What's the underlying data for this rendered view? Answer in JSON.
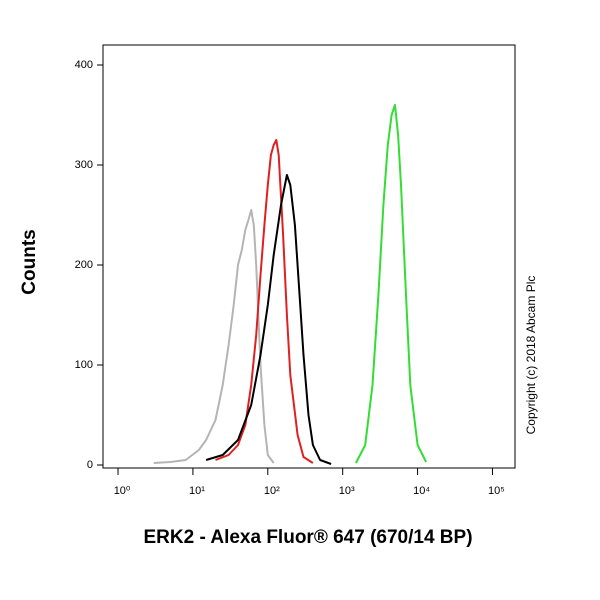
{
  "chart_data": {
    "type": "line",
    "y_label": "Counts",
    "x_label": "ERK2 - Alexa Fluor® 647 (670/14 BP)",
    "annotation": "Copyright (c) 2018 Abcam Plc",
    "log_x": true,
    "xlim": [
      0.63,
      200000
    ],
    "xticks": [
      {
        "value": 1,
        "label": "10⁰"
      },
      {
        "value": 10,
        "label": "10¹"
      },
      {
        "value": 100,
        "label": "10²"
      },
      {
        "value": 1000,
        "label": "10³"
      },
      {
        "value": 10000,
        "label": "10⁴"
      },
      {
        "value": 100000,
        "label": "10⁵"
      }
    ],
    "ylim": [
      0,
      420
    ],
    "yticks": [
      0,
      100,
      200,
      300,
      400
    ],
    "series": [
      {
        "color": "#b4b4b4",
        "x": [
          3,
          5,
          8,
          12,
          15,
          20,
          25,
          30,
          35,
          40,
          45,
          50,
          55,
          60,
          65,
          70,
          80,
          90,
          100,
          120
        ],
        "values": [
          2,
          3,
          5,
          15,
          25,
          45,
          80,
          120,
          160,
          200,
          215,
          235,
          245,
          255,
          240,
          200,
          100,
          40,
          10,
          2
        ]
      },
      {
        "color": "#e02020",
        "x": [
          20,
          30,
          40,
          50,
          60,
          70,
          80,
          90,
          100,
          110,
          120,
          130,
          140,
          160,
          180,
          200,
          250,
          300,
          400
        ],
        "values": [
          5,
          10,
          20,
          40,
          80,
          130,
          190,
          240,
          280,
          310,
          320,
          325,
          310,
          230,
          150,
          90,
          30,
          8,
          2
        ]
      },
      {
        "color": "#000000",
        "x": [
          15,
          25,
          40,
          60,
          80,
          100,
          120,
          150,
          180,
          200,
          230,
          260,
          300,
          350,
          400,
          500,
          700
        ],
        "values": [
          5,
          10,
          25,
          60,
          110,
          160,
          210,
          260,
          290,
          280,
          240,
          180,
          110,
          50,
          20,
          5,
          1
        ]
      },
      {
        "color": "#33dd33",
        "x": [
          1500,
          2000,
          2500,
          3000,
          3500,
          4000,
          4500,
          5000,
          5500,
          6000,
          7000,
          8000,
          10000,
          13000
        ],
        "values": [
          2,
          20,
          80,
          170,
          260,
          320,
          350,
          360,
          330,
          280,
          170,
          80,
          20,
          3
        ]
      }
    ]
  }
}
